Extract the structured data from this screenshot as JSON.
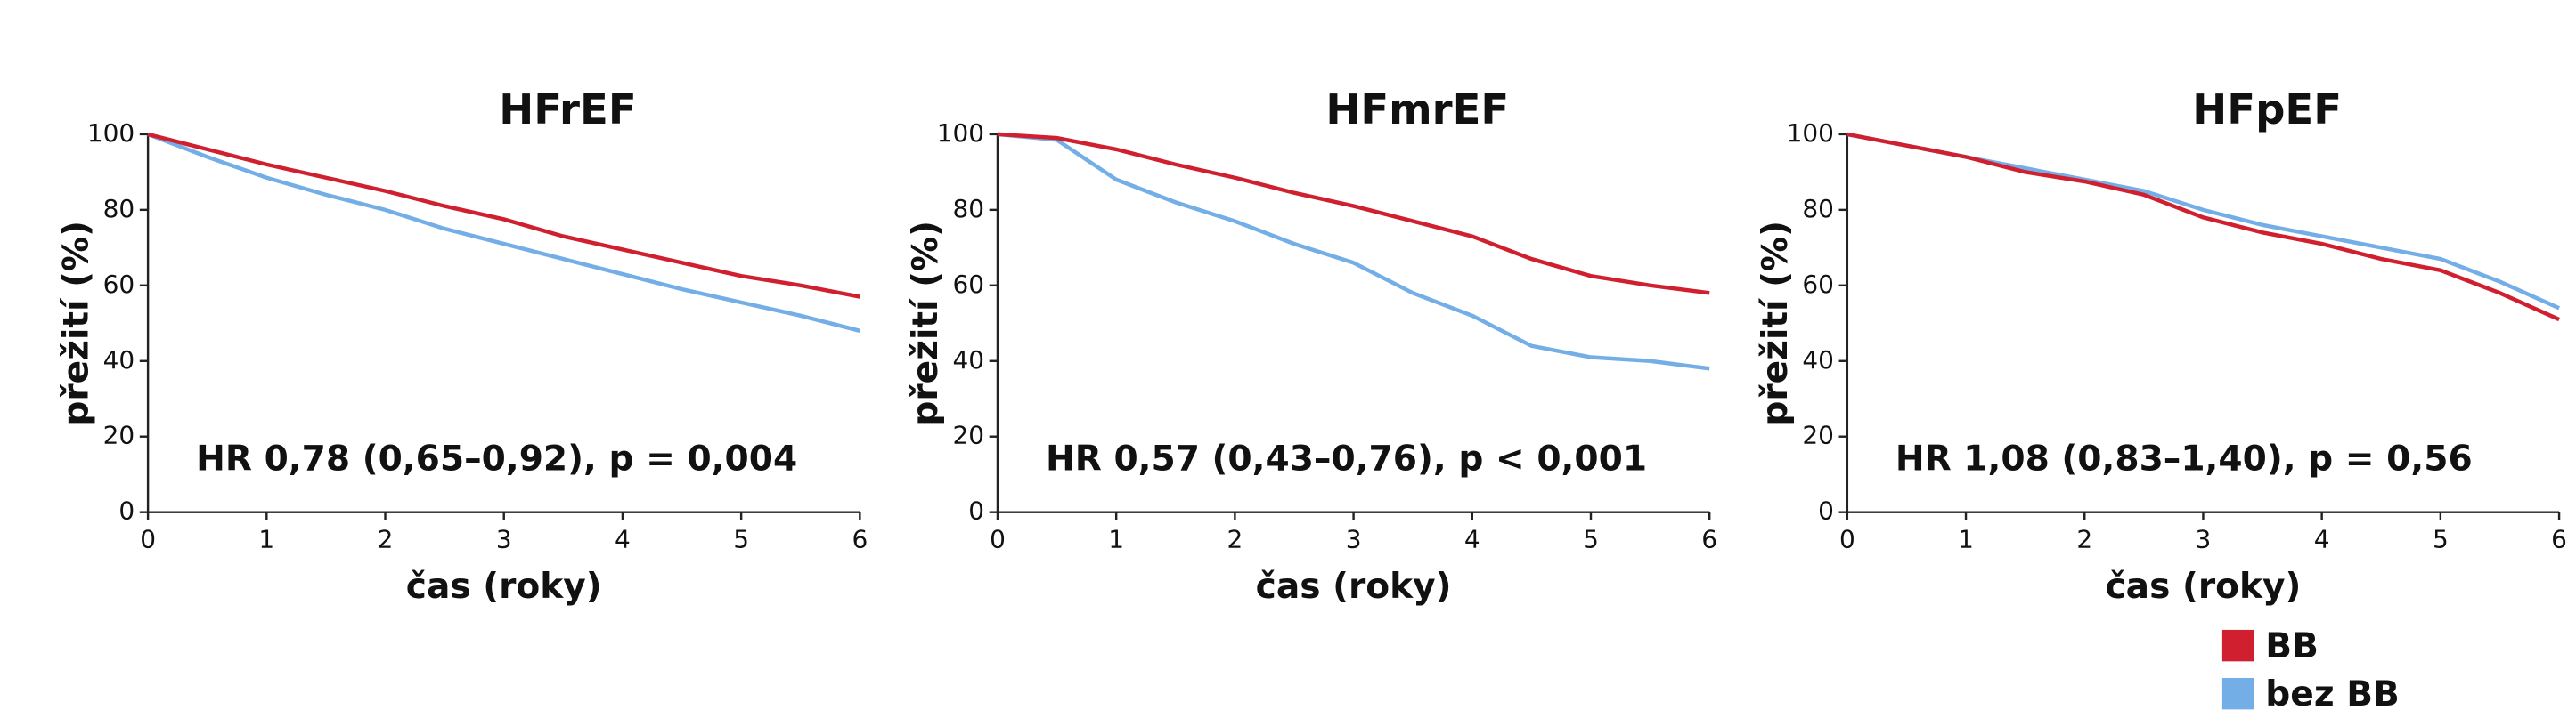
{
  "chart_data": [
    {
      "type": "line",
      "title": "HFrEF",
      "xlabel": "čas (roky)",
      "ylabel": "přežití (%)",
      "annotation": "HR 0,78 (0,65–0,92), p = 0,004",
      "x": [
        0,
        0.5,
        1,
        1.5,
        2,
        2.5,
        3,
        3.5,
        4,
        4.5,
        5,
        5.5,
        6
      ],
      "series": [
        {
          "name": "BB",
          "color": "#d02030",
          "values": [
            100,
            96,
            92,
            88.5,
            85,
            81,
            77.5,
            73,
            69.5,
            66,
            62.5,
            60,
            57
          ]
        },
        {
          "name": "bez BB",
          "color": "#74aee6",
          "values": [
            100,
            94,
            88.5,
            84,
            80,
            75,
            71,
            67,
            63,
            59,
            55.5,
            52,
            48
          ]
        }
      ],
      "xlim": [
        0,
        6
      ],
      "xticks": [
        0,
        1,
        2,
        3,
        4,
        5,
        6
      ],
      "ylim": [
        0,
        100
      ],
      "yticks": [
        0,
        20,
        40,
        60,
        80,
        100
      ]
    },
    {
      "type": "line",
      "title": "HFmrEF",
      "xlabel": "čas (roky)",
      "ylabel": "přežití (%)",
      "annotation": "HR 0,57 (0,43–0,76), p < 0,001",
      "x": [
        0,
        0.5,
        1,
        1.5,
        2,
        2.5,
        3,
        3.5,
        4,
        4.5,
        5,
        5.5,
        6
      ],
      "series": [
        {
          "name": "BB",
          "color": "#d02030",
          "values": [
            100,
            99,
            96,
            92,
            88.5,
            84.5,
            81,
            77,
            73,
            67,
            62.5,
            60,
            58
          ]
        },
        {
          "name": "bez BB",
          "color": "#74aee6",
          "values": [
            100,
            98.5,
            88,
            82,
            77,
            71,
            66,
            58,
            52,
            44,
            41,
            40,
            38
          ]
        }
      ],
      "xlim": [
        0,
        6
      ],
      "xticks": [
        0,
        1,
        2,
        3,
        4,
        5,
        6
      ],
      "ylim": [
        0,
        100
      ],
      "yticks": [
        0,
        20,
        40,
        60,
        80,
        100
      ]
    },
    {
      "type": "line",
      "title": "HFpEF",
      "xlabel": "čas (roky)",
      "ylabel": "přežití (%)",
      "annotation": "HR 1,08 (0,83–1,40), p = 0,56",
      "x": [
        0,
        0.5,
        1,
        1.5,
        2,
        2.5,
        3,
        3.5,
        4,
        4.5,
        5,
        5.5,
        6
      ],
      "series": [
        {
          "name": "BB",
          "color": "#d02030",
          "values": [
            100,
            97,
            94,
            90,
            87.5,
            84,
            78,
            74,
            71,
            67,
            64,
            58,
            51
          ]
        },
        {
          "name": "bez BB",
          "color": "#74aee6",
          "values": [
            100,
            97,
            94,
            91,
            88,
            85,
            80,
            76,
            73,
            70,
            67,
            61,
            54
          ]
        }
      ],
      "xlim": [
        0,
        6
      ],
      "xticks": [
        0,
        1,
        2,
        3,
        4,
        5,
        6
      ],
      "ylim": [
        0,
        100
      ],
      "yticks": [
        0,
        20,
        40,
        60,
        80,
        100
      ],
      "legend": "bottom-right"
    }
  ]
}
